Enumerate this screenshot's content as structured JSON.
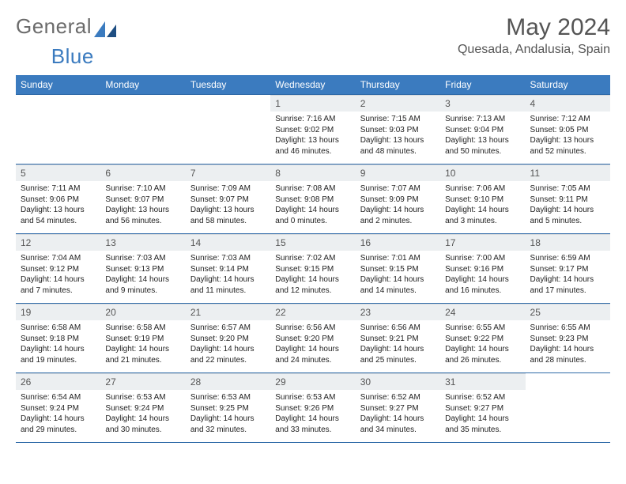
{
  "logo": {
    "text1": "General",
    "text2": "Blue"
  },
  "title": "May 2024",
  "location": "Quesada, Andalusia, Spain",
  "weekdays": [
    "Sunday",
    "Monday",
    "Tuesday",
    "Wednesday",
    "Thursday",
    "Friday",
    "Saturday"
  ],
  "colors": {
    "header_bg": "#3b7bbf",
    "header_text": "#ffffff",
    "daynum_bg": "#eceff1",
    "border": "#2f6aa8",
    "title_color": "#555555"
  },
  "typography": {
    "title_fontsize": 30,
    "location_fontsize": 16,
    "weekday_fontsize": 12,
    "daynum_fontsize": 12,
    "body_fontsize": 10
  },
  "startOffset": 3,
  "days": [
    {
      "n": "1",
      "l1": "Sunrise: 7:16 AM",
      "l2": "Sunset: 9:02 PM",
      "l3": "Daylight: 13 hours",
      "l4": "and 46 minutes."
    },
    {
      "n": "2",
      "l1": "Sunrise: 7:15 AM",
      "l2": "Sunset: 9:03 PM",
      "l3": "Daylight: 13 hours",
      "l4": "and 48 minutes."
    },
    {
      "n": "3",
      "l1": "Sunrise: 7:13 AM",
      "l2": "Sunset: 9:04 PM",
      "l3": "Daylight: 13 hours",
      "l4": "and 50 minutes."
    },
    {
      "n": "4",
      "l1": "Sunrise: 7:12 AM",
      "l2": "Sunset: 9:05 PM",
      "l3": "Daylight: 13 hours",
      "l4": "and 52 minutes."
    },
    {
      "n": "5",
      "l1": "Sunrise: 7:11 AM",
      "l2": "Sunset: 9:06 PM",
      "l3": "Daylight: 13 hours",
      "l4": "and 54 minutes."
    },
    {
      "n": "6",
      "l1": "Sunrise: 7:10 AM",
      "l2": "Sunset: 9:07 PM",
      "l3": "Daylight: 13 hours",
      "l4": "and 56 minutes."
    },
    {
      "n": "7",
      "l1": "Sunrise: 7:09 AM",
      "l2": "Sunset: 9:07 PM",
      "l3": "Daylight: 13 hours",
      "l4": "and 58 minutes."
    },
    {
      "n": "8",
      "l1": "Sunrise: 7:08 AM",
      "l2": "Sunset: 9:08 PM",
      "l3": "Daylight: 14 hours",
      "l4": "and 0 minutes."
    },
    {
      "n": "9",
      "l1": "Sunrise: 7:07 AM",
      "l2": "Sunset: 9:09 PM",
      "l3": "Daylight: 14 hours",
      "l4": "and 2 minutes."
    },
    {
      "n": "10",
      "l1": "Sunrise: 7:06 AM",
      "l2": "Sunset: 9:10 PM",
      "l3": "Daylight: 14 hours",
      "l4": "and 3 minutes."
    },
    {
      "n": "11",
      "l1": "Sunrise: 7:05 AM",
      "l2": "Sunset: 9:11 PM",
      "l3": "Daylight: 14 hours",
      "l4": "and 5 minutes."
    },
    {
      "n": "12",
      "l1": "Sunrise: 7:04 AM",
      "l2": "Sunset: 9:12 PM",
      "l3": "Daylight: 14 hours",
      "l4": "and 7 minutes."
    },
    {
      "n": "13",
      "l1": "Sunrise: 7:03 AM",
      "l2": "Sunset: 9:13 PM",
      "l3": "Daylight: 14 hours",
      "l4": "and 9 minutes."
    },
    {
      "n": "14",
      "l1": "Sunrise: 7:03 AM",
      "l2": "Sunset: 9:14 PM",
      "l3": "Daylight: 14 hours",
      "l4": "and 11 minutes."
    },
    {
      "n": "15",
      "l1": "Sunrise: 7:02 AM",
      "l2": "Sunset: 9:15 PM",
      "l3": "Daylight: 14 hours",
      "l4": "and 12 minutes."
    },
    {
      "n": "16",
      "l1": "Sunrise: 7:01 AM",
      "l2": "Sunset: 9:15 PM",
      "l3": "Daylight: 14 hours",
      "l4": "and 14 minutes."
    },
    {
      "n": "17",
      "l1": "Sunrise: 7:00 AM",
      "l2": "Sunset: 9:16 PM",
      "l3": "Daylight: 14 hours",
      "l4": "and 16 minutes."
    },
    {
      "n": "18",
      "l1": "Sunrise: 6:59 AM",
      "l2": "Sunset: 9:17 PM",
      "l3": "Daylight: 14 hours",
      "l4": "and 17 minutes."
    },
    {
      "n": "19",
      "l1": "Sunrise: 6:58 AM",
      "l2": "Sunset: 9:18 PM",
      "l3": "Daylight: 14 hours",
      "l4": "and 19 minutes."
    },
    {
      "n": "20",
      "l1": "Sunrise: 6:58 AM",
      "l2": "Sunset: 9:19 PM",
      "l3": "Daylight: 14 hours",
      "l4": "and 21 minutes."
    },
    {
      "n": "21",
      "l1": "Sunrise: 6:57 AM",
      "l2": "Sunset: 9:20 PM",
      "l3": "Daylight: 14 hours",
      "l4": "and 22 minutes."
    },
    {
      "n": "22",
      "l1": "Sunrise: 6:56 AM",
      "l2": "Sunset: 9:20 PM",
      "l3": "Daylight: 14 hours",
      "l4": "and 24 minutes."
    },
    {
      "n": "23",
      "l1": "Sunrise: 6:56 AM",
      "l2": "Sunset: 9:21 PM",
      "l3": "Daylight: 14 hours",
      "l4": "and 25 minutes."
    },
    {
      "n": "24",
      "l1": "Sunrise: 6:55 AM",
      "l2": "Sunset: 9:22 PM",
      "l3": "Daylight: 14 hours",
      "l4": "and 26 minutes."
    },
    {
      "n": "25",
      "l1": "Sunrise: 6:55 AM",
      "l2": "Sunset: 9:23 PM",
      "l3": "Daylight: 14 hours",
      "l4": "and 28 minutes."
    },
    {
      "n": "26",
      "l1": "Sunrise: 6:54 AM",
      "l2": "Sunset: 9:24 PM",
      "l3": "Daylight: 14 hours",
      "l4": "and 29 minutes."
    },
    {
      "n": "27",
      "l1": "Sunrise: 6:53 AM",
      "l2": "Sunset: 9:24 PM",
      "l3": "Daylight: 14 hours",
      "l4": "and 30 minutes."
    },
    {
      "n": "28",
      "l1": "Sunrise: 6:53 AM",
      "l2": "Sunset: 9:25 PM",
      "l3": "Daylight: 14 hours",
      "l4": "and 32 minutes."
    },
    {
      "n": "29",
      "l1": "Sunrise: 6:53 AM",
      "l2": "Sunset: 9:26 PM",
      "l3": "Daylight: 14 hours",
      "l4": "and 33 minutes."
    },
    {
      "n": "30",
      "l1": "Sunrise: 6:52 AM",
      "l2": "Sunset: 9:27 PM",
      "l3": "Daylight: 14 hours",
      "l4": "and 34 minutes."
    },
    {
      "n": "31",
      "l1": "Sunrise: 6:52 AM",
      "l2": "Sunset: 9:27 PM",
      "l3": "Daylight: 14 hours",
      "l4": "and 35 minutes."
    }
  ]
}
